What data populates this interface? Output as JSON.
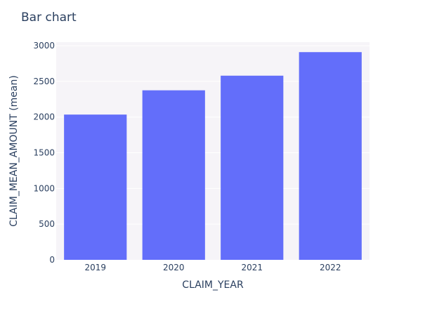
{
  "chart_data": {
    "type": "bar",
    "title": "Bar chart",
    "xlabel": "CLAIM_YEAR",
    "ylabel": "CLAIM_MEAN_AMOUNT (mean)",
    "categories": [
      "2019",
      "2020",
      "2021",
      "2022"
    ],
    "values": [
      2035,
      2375,
      2580,
      2910
    ],
    "ylim": [
      0,
      3050
    ],
    "yticks": [
      0,
      500,
      1000,
      1500,
      2000,
      2500,
      3000
    ],
    "grid": true,
    "bar_color": "#636efa",
    "plot_background": "#f6f4f8",
    "gridline_color": "#ffffff"
  }
}
